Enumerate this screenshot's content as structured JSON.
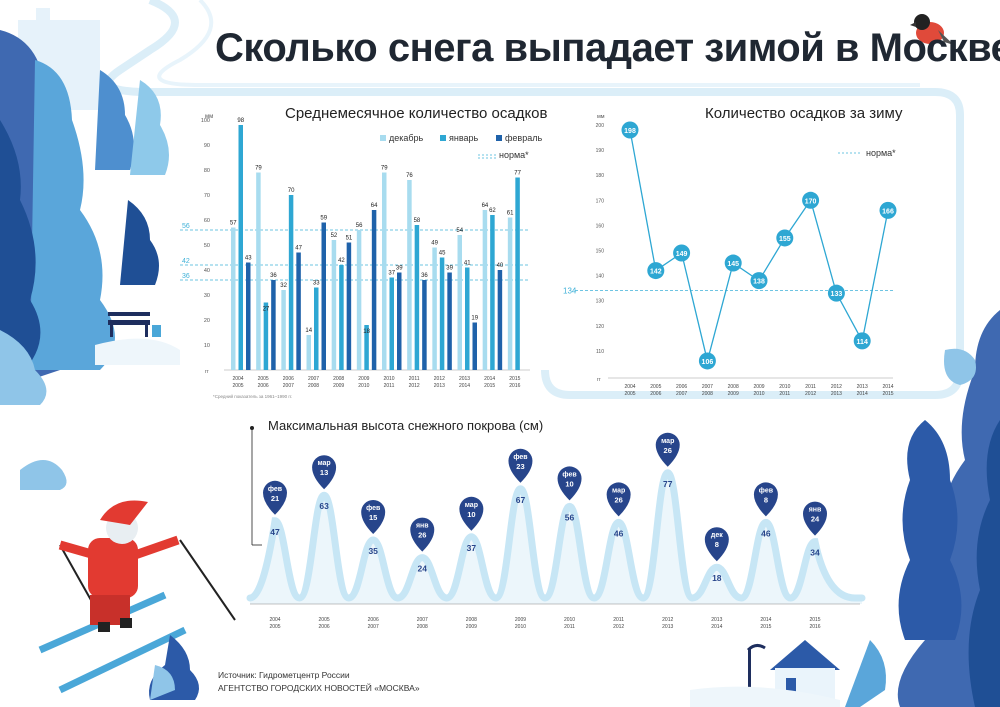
{
  "title": "Сколько снега выпадает зимой в Москве",
  "source": "Источник: Гидрометцентр России",
  "agency": "АГЕНТСТВО ГОРОДСКИХ НОВОСТЕЙ «МОСКВА»",
  "colors": {
    "dec": "#a8dcef",
    "jan": "#2ea7d3",
    "feb": "#1f62aa",
    "norm": "#3fb1d8",
    "marker": "#27458b",
    "dark": "#1e2e5e",
    "light_blue": "#d9eef8"
  },
  "chart_data": [
    {
      "type": "bar",
      "title": "Среднемесячное количество осадков",
      "ylabel": "мм",
      "xunit": "гг",
      "ylim": [
        0,
        100
      ],
      "yticks": [
        10,
        20,
        30,
        40,
        50,
        60,
        70,
        80,
        90,
        100
      ],
      "categories": [
        "2004 2005",
        "2005 2006",
        "2006 2007",
        "2007 2008",
        "2008 2009",
        "2009 2010",
        "2010 2011",
        "2011 2012",
        "2012 2013",
        "2013 2014",
        "2014 2015",
        "2015 2016"
      ],
      "series": [
        {
          "name": "декабрь",
          "values": [
            57,
            79,
            32,
            14,
            52,
            56,
            79,
            76,
            49,
            54,
            64,
            61
          ]
        },
        {
          "name": "январь",
          "values": [
            98,
            27,
            70,
            33,
            42,
            18,
            37,
            58,
            45,
            41,
            62,
            77
          ]
        },
        {
          "name": "февраль",
          "values": [
            43,
            36,
            47,
            59,
            51,
            64,
            39,
            36,
            39,
            19,
            40,
            null
          ]
        }
      ],
      "norms": [
        {
          "value": 56,
          "label": "56"
        },
        {
          "value": 42,
          "label": "42"
        },
        {
          "value": 36,
          "label": "36"
        }
      ],
      "norm_label": "норма*",
      "footnote": "*Средний показатель за 1961–1990 гг."
    },
    {
      "type": "line",
      "title": "Количество осадков за зиму",
      "ylabel": "мм",
      "xunit": "гг",
      "ylim": [
        100,
        200
      ],
      "yticks": [
        110,
        120,
        130,
        140,
        150,
        160,
        170,
        180,
        190,
        200
      ],
      "categories": [
        "2004 2005",
        "2005 2006",
        "2006 2007",
        "2007 2008",
        "2008 2009",
        "2009 2010",
        "2010 2011",
        "2011 2012",
        "2012 2013",
        "2013 2014",
        "2014 2015"
      ],
      "values": [
        198,
        142,
        149,
        106,
        145,
        138,
        155,
        170,
        133,
        114,
        166
      ],
      "norm": 134,
      "norm_label": "норма*"
    },
    {
      "type": "line",
      "title": "Максимальная высота снежного покрова (см)",
      "categories": [
        "2004 2005",
        "2005 2006",
        "2006 2007",
        "2007 2008",
        "2008 2009",
        "2009 2010",
        "2010 2011",
        "2011 2012",
        "2012 2013",
        "2013 2014",
        "2014 2015",
        "2015 2016"
      ],
      "values": [
        47,
        63,
        35,
        24,
        37,
        67,
        56,
        46,
        77,
        18,
        46,
        34
      ],
      "dates": [
        [
          "фев",
          "21"
        ],
        [
          "мар",
          "13"
        ],
        [
          "фев",
          "15"
        ],
        [
          "янв",
          "26"
        ],
        [
          "мар",
          "10"
        ],
        [
          "фев",
          "23"
        ],
        [
          "фев",
          "10"
        ],
        [
          "мар",
          "26"
        ],
        [
          "мар",
          "26"
        ],
        [
          "дек",
          "8"
        ],
        [
          "фев",
          "8"
        ],
        [
          "янв",
          "24"
        ]
      ]
    }
  ]
}
